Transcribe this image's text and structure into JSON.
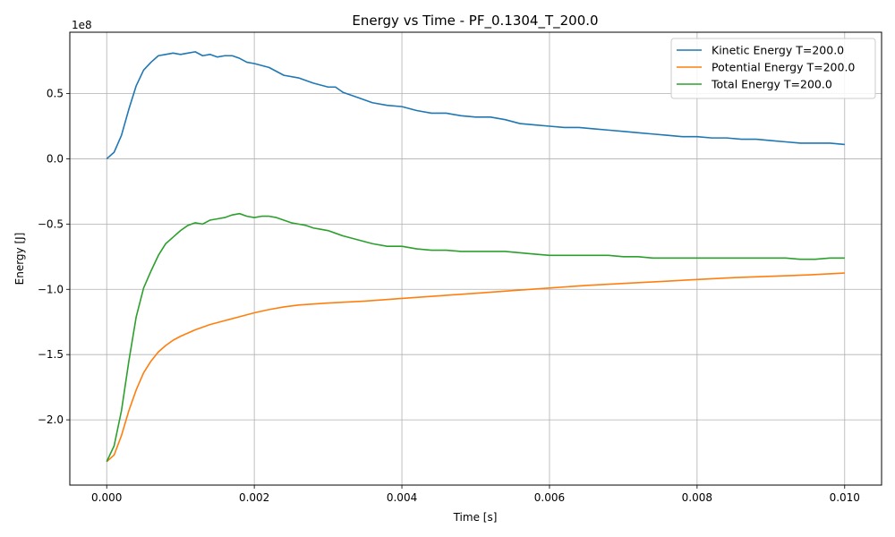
{
  "chart_data": {
    "type": "line",
    "title": "Energy vs Time - PF_0.1304_T_200.0",
    "xlabel": "Time [s]",
    "ylabel": "Energy [J]",
    "y_offset_label": "1e8",
    "xlim": [
      -0.0005,
      0.0105
    ],
    "ylim": [
      -2.5,
      0.97
    ],
    "y_scale": 100000000,
    "grid": true,
    "legend_position": "top-right",
    "x_ticks": [
      0.0,
      0.002,
      0.004,
      0.006,
      0.008,
      0.01
    ],
    "x_tick_labels": [
      "0.000",
      "0.002",
      "0.004",
      "0.006",
      "0.008",
      "0.010"
    ],
    "y_ticks": [
      -2.0,
      -1.5,
      -1.0,
      -0.5,
      0.0,
      0.5
    ],
    "y_tick_labels": [
      "−2.0",
      "−1.5",
      "−1.0",
      "−0.5",
      "0.0",
      "0.5"
    ],
    "series": [
      {
        "name": "Kinetic Energy T=200.0",
        "color": "#1f77b4",
        "x": [
          0,
          0.0001,
          0.0002,
          0.0003,
          0.0004,
          0.0005,
          0.0006,
          0.0007,
          0.0008,
          0.0009,
          0.001,
          0.0011,
          0.0012,
          0.0013,
          0.0014,
          0.0015,
          0.0016,
          0.0017,
          0.0018,
          0.0019,
          0.002,
          0.0022,
          0.0024,
          0.0026,
          0.0028,
          0.003,
          0.0031,
          0.0032,
          0.0034,
          0.0036,
          0.0038,
          0.004,
          0.0042,
          0.0044,
          0.0046,
          0.0048,
          0.005,
          0.0052,
          0.0054,
          0.0056,
          0.0058,
          0.006,
          0.0062,
          0.0064,
          0.0066,
          0.0068,
          0.007,
          0.0072,
          0.0074,
          0.0076,
          0.0078,
          0.008,
          0.0082,
          0.0084,
          0.0086,
          0.0088,
          0.009,
          0.0092,
          0.0094,
          0.0096,
          0.0098,
          0.01
        ],
        "y": [
          0.0,
          0.05,
          0.18,
          0.38,
          0.56,
          0.68,
          0.74,
          0.79,
          0.8,
          0.81,
          0.8,
          0.81,
          0.82,
          0.79,
          0.8,
          0.78,
          0.79,
          0.79,
          0.77,
          0.74,
          0.73,
          0.7,
          0.64,
          0.62,
          0.58,
          0.55,
          0.55,
          0.51,
          0.47,
          0.43,
          0.41,
          0.4,
          0.37,
          0.35,
          0.35,
          0.33,
          0.32,
          0.32,
          0.3,
          0.27,
          0.26,
          0.25,
          0.24,
          0.24,
          0.23,
          0.22,
          0.21,
          0.2,
          0.19,
          0.18,
          0.17,
          0.17,
          0.16,
          0.16,
          0.15,
          0.15,
          0.14,
          0.13,
          0.12,
          0.12,
          0.12,
          0.11
        ]
      },
      {
        "name": "Potential Energy T=200.0",
        "color": "#ff7f0e",
        "x": [
          0,
          0.0001,
          0.0002,
          0.0003,
          0.0004,
          0.0005,
          0.0006,
          0.0007,
          0.0008,
          0.0009,
          0.001,
          0.0012,
          0.0014,
          0.0016,
          0.0018,
          0.002,
          0.0022,
          0.0024,
          0.0026,
          0.003,
          0.0035,
          0.004,
          0.0045,
          0.005,
          0.0055,
          0.006,
          0.0065,
          0.007,
          0.0075,
          0.008,
          0.0085,
          0.009,
          0.0095,
          0.01
        ],
        "y": [
          -2.32,
          -2.27,
          -2.12,
          -1.93,
          -1.77,
          -1.64,
          -1.55,
          -1.48,
          -1.43,
          -1.39,
          -1.36,
          -1.31,
          -1.27,
          -1.24,
          -1.21,
          -1.18,
          -1.155,
          -1.135,
          -1.12,
          -1.105,
          -1.09,
          -1.07,
          -1.05,
          -1.03,
          -1.01,
          -0.99,
          -0.97,
          -0.955,
          -0.94,
          -0.925,
          -0.91,
          -0.9,
          -0.89,
          -0.875
        ]
      },
      {
        "name": "Total Energy T=200.0",
        "color": "#2ca02c",
        "x": [
          0,
          0.0001,
          0.0002,
          0.0003,
          0.0004,
          0.0005,
          0.0006,
          0.0007,
          0.0008,
          0.0009,
          0.001,
          0.0011,
          0.0012,
          0.0013,
          0.0014,
          0.0015,
          0.0016,
          0.0017,
          0.0018,
          0.0019,
          0.002,
          0.0021,
          0.0022,
          0.0023,
          0.0024,
          0.0025,
          0.0026,
          0.0027,
          0.0028,
          0.0029,
          0.003,
          0.0031,
          0.0032,
          0.0034,
          0.0036,
          0.0038,
          0.004,
          0.0042,
          0.0044,
          0.0046,
          0.0048,
          0.005,
          0.0052,
          0.0054,
          0.0056,
          0.0058,
          0.006,
          0.0062,
          0.0064,
          0.0066,
          0.0068,
          0.007,
          0.0072,
          0.0074,
          0.0076,
          0.0078,
          0.008,
          0.0082,
          0.0084,
          0.0086,
          0.0088,
          0.009,
          0.0092,
          0.0094,
          0.0096,
          0.0098,
          0.01
        ],
        "y": [
          -2.32,
          -2.2,
          -1.93,
          -1.55,
          -1.21,
          -0.99,
          -0.86,
          -0.74,
          -0.65,
          -0.6,
          -0.55,
          -0.51,
          -0.49,
          -0.5,
          -0.47,
          -0.46,
          -0.45,
          -0.43,
          -0.42,
          -0.44,
          -0.45,
          -0.44,
          -0.44,
          -0.45,
          -0.47,
          -0.49,
          -0.5,
          -0.51,
          -0.53,
          -0.54,
          -0.55,
          -0.57,
          -0.59,
          -0.62,
          -0.65,
          -0.67,
          -0.67,
          -0.69,
          -0.7,
          -0.7,
          -0.71,
          -0.71,
          -0.71,
          -0.71,
          -0.72,
          -0.73,
          -0.74,
          -0.74,
          -0.74,
          -0.74,
          -0.74,
          -0.75,
          -0.75,
          -0.76,
          -0.76,
          -0.76,
          -0.76,
          -0.76,
          -0.76,
          -0.76,
          -0.76,
          -0.76,
          -0.76,
          -0.77,
          -0.77,
          -0.76,
          -0.76
        ]
      }
    ]
  }
}
